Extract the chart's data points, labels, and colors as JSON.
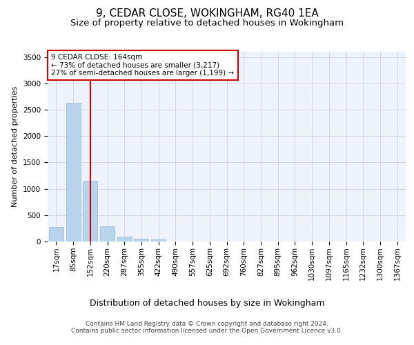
{
  "title": "9, CEDAR CLOSE, WOKINGHAM, RG40 1EA",
  "subtitle": "Size of property relative to detached houses in Wokingham",
  "xlabel": "Distribution of detached houses by size in Wokingham",
  "ylabel": "Number of detached properties",
  "categories": [
    "17sqm",
    "85sqm",
    "152sqm",
    "220sqm",
    "287sqm",
    "355sqm",
    "422sqm",
    "490sqm",
    "557sqm",
    "625sqm",
    "692sqm",
    "760sqm",
    "827sqm",
    "895sqm",
    "962sqm",
    "1030sqm",
    "1097sqm",
    "1165sqm",
    "1232sqm",
    "1300sqm",
    "1367sqm"
  ],
  "values": [
    270,
    2630,
    1155,
    285,
    95,
    50,
    40,
    0,
    0,
    0,
    0,
    0,
    0,
    0,
    0,
    0,
    0,
    0,
    0,
    0,
    0
  ],
  "bar_color": "#b8d4ed",
  "bar_edge_color": "#a0c0de",
  "grid_color": "#d0d8e8",
  "background_color": "#eef2fa",
  "vline_x": 2,
  "vline_color": "#cc0000",
  "annotation_text": "9 CEDAR CLOSE: 164sqm\n← 73% of detached houses are smaller (3,217)\n27% of semi-detached houses are larger (1,199) →",
  "annotation_box_color": "#cc0000",
  "ylim": [
    0,
    3600
  ],
  "yticks": [
    0,
    500,
    1000,
    1500,
    2000,
    2500,
    3000,
    3500
  ],
  "footer": "Contains HM Land Registry data © Crown copyright and database right 2024.\nContains public sector information licensed under the Open Government Licence v3.0.",
  "title_fontsize": 11,
  "subtitle_fontsize": 9.5,
  "xlabel_fontsize": 9,
  "ylabel_fontsize": 8,
  "tick_fontsize": 7.5,
  "footer_fontsize": 6.5
}
